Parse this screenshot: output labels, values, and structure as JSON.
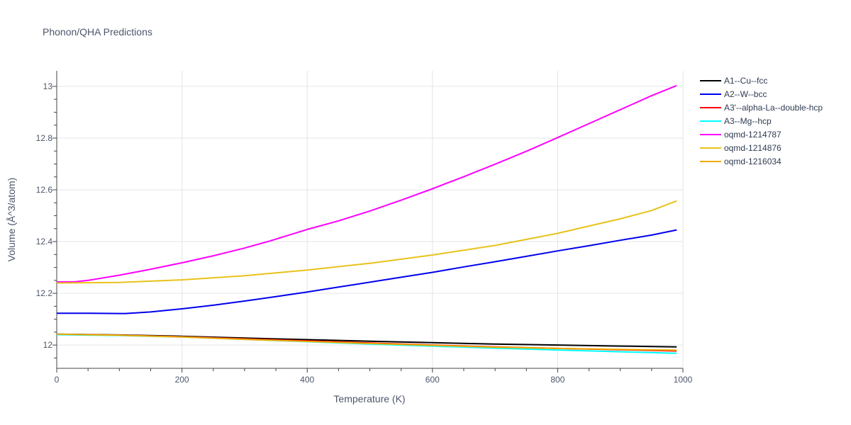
{
  "chart_data": {
    "type": "line",
    "title": "Phonon/QHA Predictions",
    "xlabel": "Temperature (K)",
    "ylabel": "Volume (Å^3/atom)",
    "xlim": [
      0,
      1000
    ],
    "ylim": [
      11.91,
      13.06
    ],
    "xticks": [
      0,
      200,
      400,
      600,
      800,
      1000
    ],
    "yticks": [
      12,
      12.2,
      12.4,
      12.6,
      12.8,
      13
    ],
    "grid": true,
    "legend_position": "right",
    "series": [
      {
        "name": "A1--Cu--fcc",
        "color": "#000000",
        "x": [
          0,
          100,
          200,
          300,
          400,
          500,
          600,
          700,
          800,
          900,
          990
        ],
        "y": [
          12.042,
          12.039,
          12.034,
          12.027,
          12.021,
          12.015,
          12.009,
          12.004,
          12.0,
          11.996,
          11.993
        ]
      },
      {
        "name": "A2--W--bcc",
        "color": "#0000ee",
        "x": [
          0,
          50,
          100,
          110,
          150,
          200,
          250,
          300,
          350,
          400,
          450,
          500,
          550,
          600,
          650,
          700,
          750,
          800,
          850,
          900,
          950,
          990
        ],
        "y": [
          12.123,
          12.123,
          12.122,
          12.122,
          12.128,
          12.14,
          12.154,
          12.17,
          12.187,
          12.205,
          12.224,
          12.243,
          12.262,
          12.281,
          12.302,
          12.322,
          12.343,
          12.364,
          12.384,
          12.405,
          12.425,
          12.445
        ]
      },
      {
        "name": "A3'--alpha-La--double-hcp",
        "color": "#ff0000",
        "x": [
          0,
          100,
          200,
          300,
          400,
          500,
          600,
          700,
          800,
          900,
          990
        ],
        "y": [
          12.041,
          12.038,
          12.032,
          12.024,
          12.016,
          12.008,
          12.0,
          11.993,
          11.987,
          11.982,
          11.977
        ]
      },
      {
        "name": "A3--Mg--hcp",
        "color": "#00ffff",
        "x": [
          0,
          100,
          200,
          300,
          400,
          500,
          600,
          700,
          800,
          900,
          990
        ],
        "y": [
          12.04,
          12.037,
          12.031,
          12.022,
          12.013,
          12.004,
          11.996,
          11.988,
          11.981,
          11.974,
          11.968
        ]
      },
      {
        "name": "oqmd-1214787",
        "color": "#ff00ff",
        "x": [
          0,
          30,
          50,
          100,
          150,
          200,
          250,
          300,
          325,
          340,
          400,
          450,
          500,
          550,
          600,
          650,
          700,
          750,
          800,
          850,
          900,
          950,
          990
        ],
        "y": [
          12.244,
          12.245,
          12.25,
          12.27,
          12.293,
          12.318,
          12.345,
          12.375,
          12.392,
          12.402,
          12.447,
          12.48,
          12.518,
          12.56,
          12.604,
          12.651,
          12.699,
          12.749,
          12.802,
          12.856,
          12.91,
          12.964,
          13.003
        ]
      },
      {
        "name": "oqmd-1214876",
        "color": "#e8c21a",
        "x": [
          0,
          100,
          200,
          300,
          400,
          500,
          600,
          700,
          800,
          900,
          950,
          990
        ],
        "y": [
          12.24,
          12.242,
          12.252,
          12.268,
          12.29,
          12.316,
          12.348,
          12.385,
          12.432,
          12.488,
          12.52,
          12.557
        ]
      },
      {
        "name": "oqmd-1216034",
        "color": "#f2a900",
        "x": [
          0,
          100,
          200,
          300,
          400,
          500,
          600,
          700,
          800,
          900,
          990
        ],
        "y": [
          12.042,
          12.038,
          12.031,
          12.022,
          12.014,
          12.006,
          11.999,
          11.992,
          11.987,
          11.983,
          11.98
        ]
      }
    ]
  }
}
